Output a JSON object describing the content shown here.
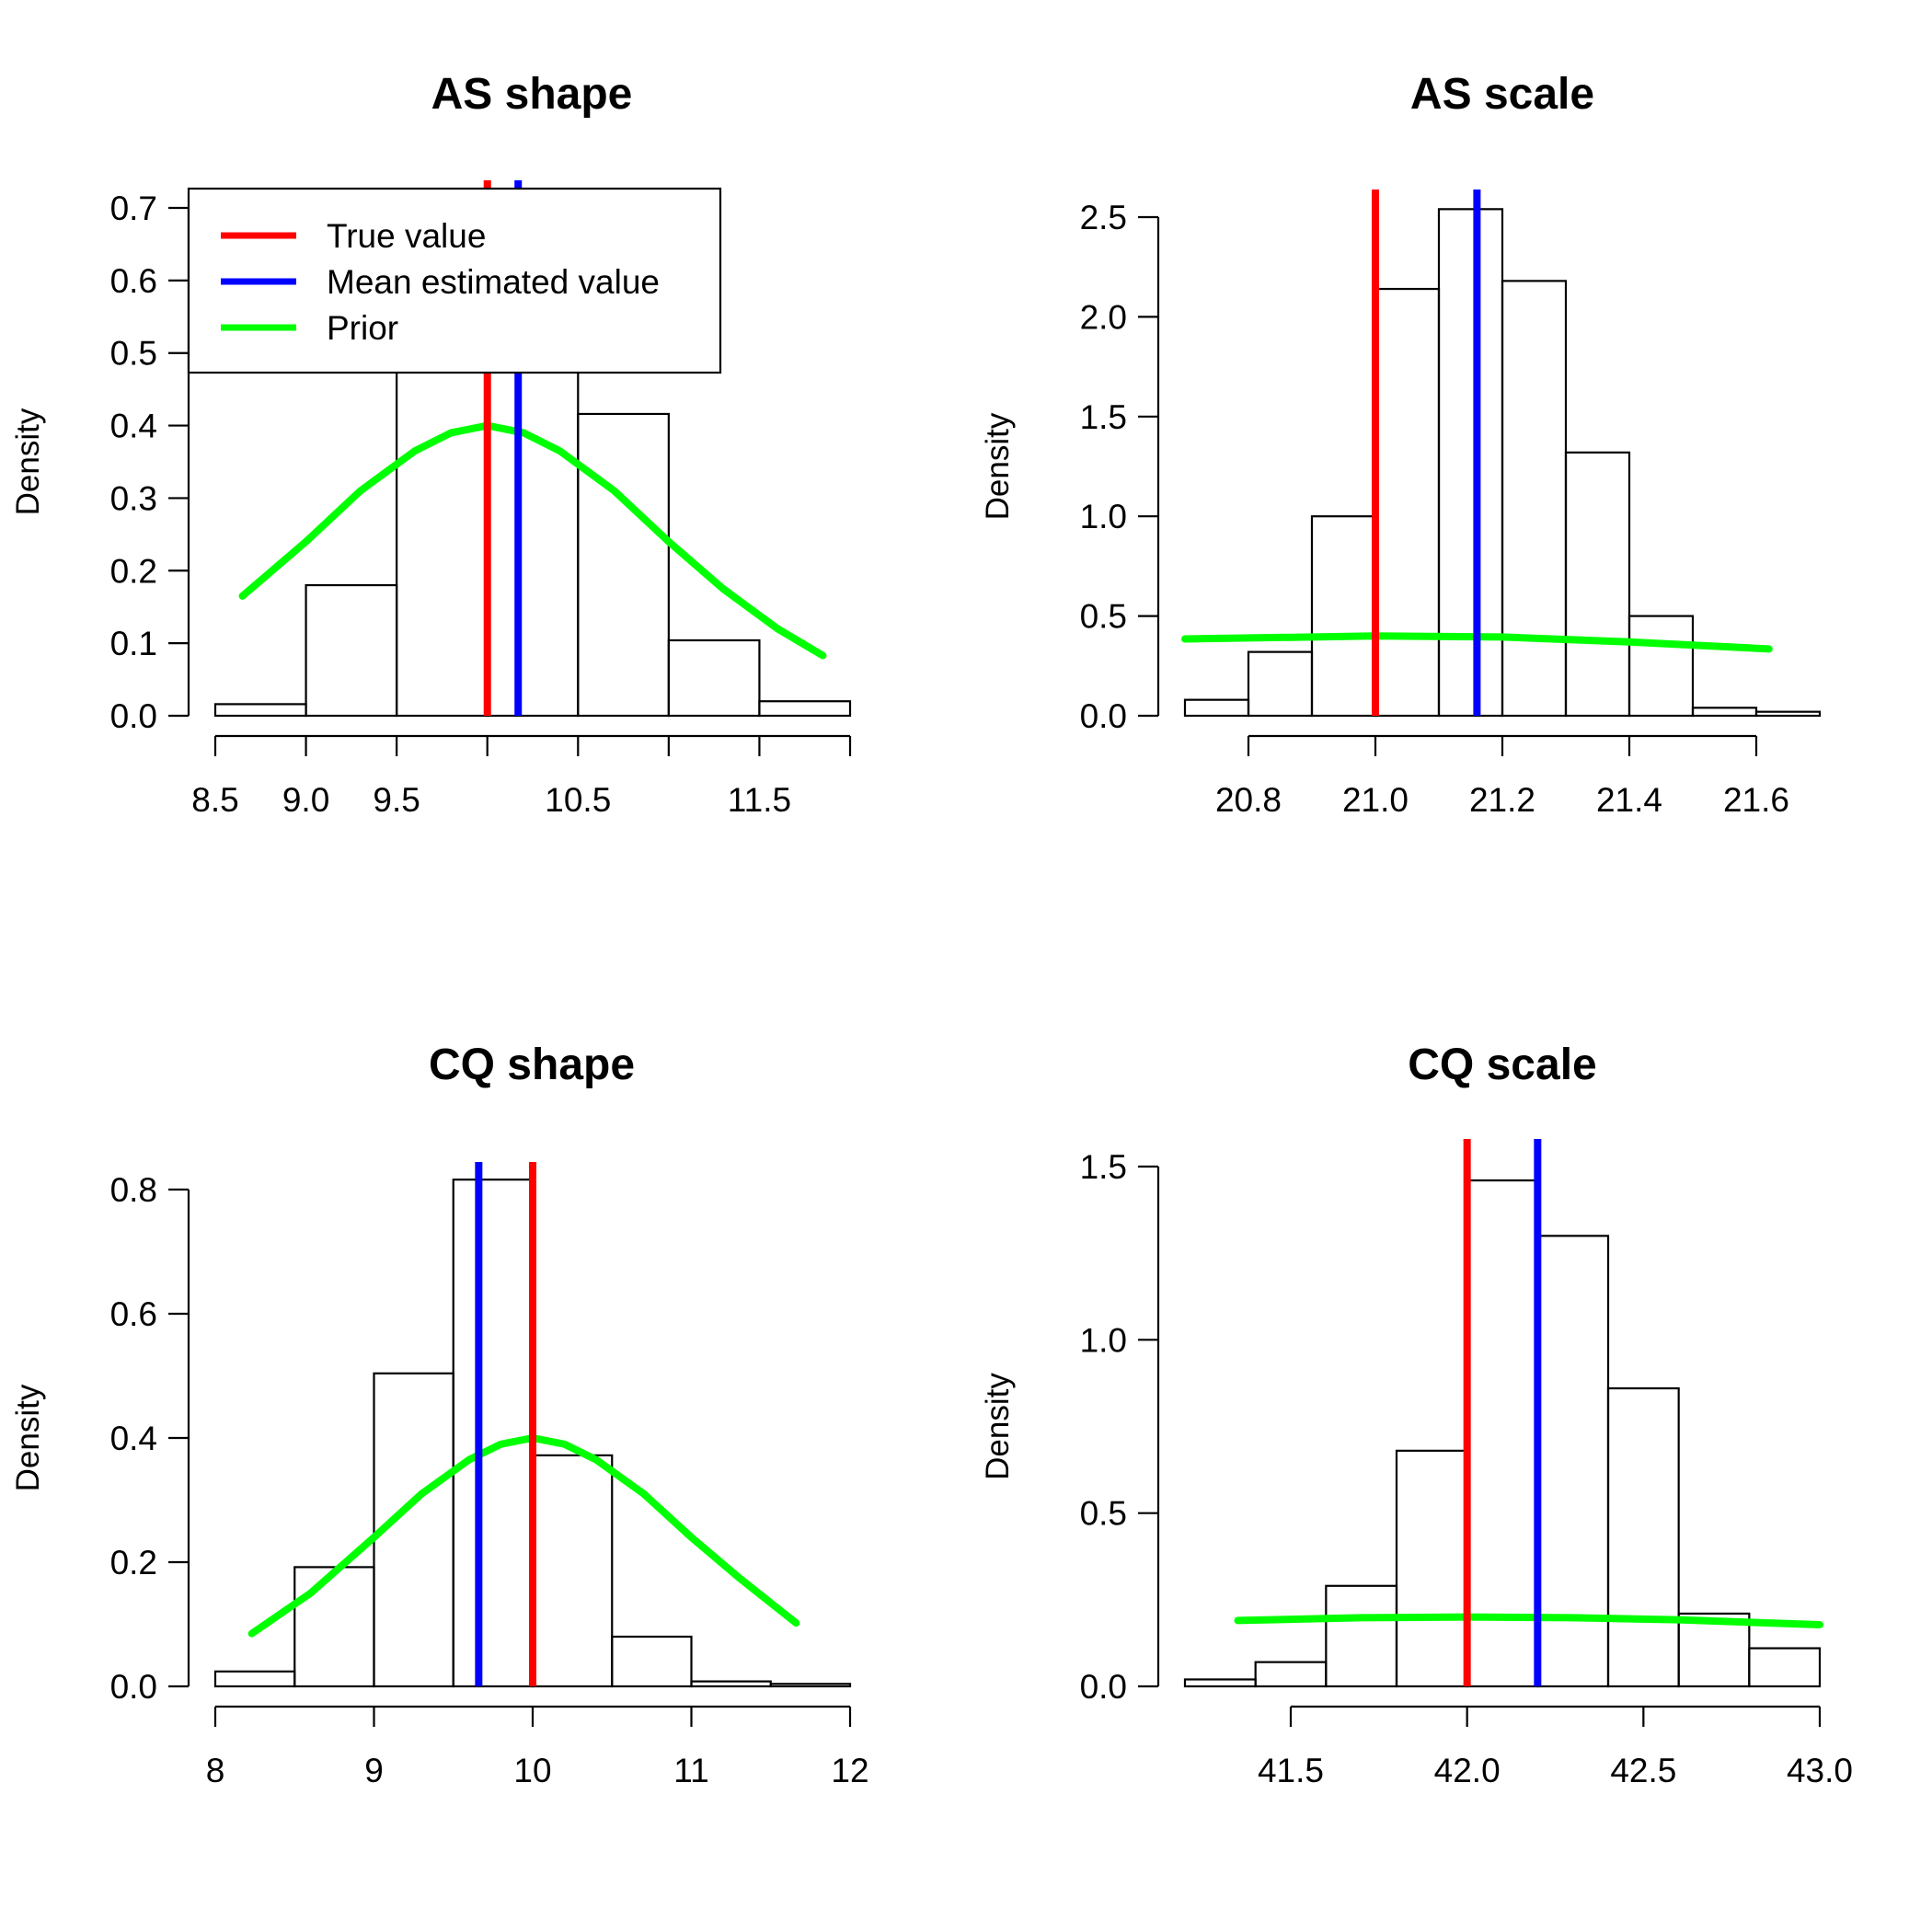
{
  "legend": {
    "items": [
      {
        "label": "True value",
        "color": "#ff0000"
      },
      {
        "label": "Mean estimated value",
        "color": "#0000ff"
      },
      {
        "label": "Prior",
        "color": "#00ff00"
      }
    ]
  },
  "chart_data": [
    {
      "type": "bar",
      "title": "AS shape",
      "xlabel": "",
      "ylabel": "Density",
      "xlim": [
        8.5,
        12.0
      ],
      "ylim": [
        0,
        0.7
      ],
      "bins": [
        [
          8.5,
          9.0
        ],
        [
          9.0,
          9.5
        ],
        [
          9.5,
          10.0
        ],
        [
          10.0,
          10.5
        ],
        [
          10.5,
          11.0
        ],
        [
          11.0,
          11.5
        ],
        [
          11.5,
          12.0
        ]
      ],
      "values": [
        0.016,
        0.18,
        0.6,
        0.6,
        0.416,
        0.104,
        0.02
      ],
      "true_value": 10.0,
      "mean_estimated_value": 10.17,
      "prior": {
        "x": [
          8.65,
          9.0,
          9.3,
          9.6,
          9.8,
          10.0,
          10.2,
          10.4,
          10.7,
          11.0,
          11.3,
          11.6,
          11.85
        ],
        "y": [
          0.165,
          0.24,
          0.31,
          0.365,
          0.39,
          0.4,
          0.39,
          0.365,
          0.31,
          0.24,
          0.175,
          0.12,
          0.083
        ]
      },
      "xticks": [
        8.5,
        9.0,
        9.5,
        10.5,
        11.5
      ],
      "xtick_labels": [
        "8.5",
        "9.0",
        "9.5",
        "10.5",
        "11.5"
      ],
      "yticks": [
        0.0,
        0.1,
        0.2,
        0.3,
        0.4,
        0.5,
        0.6,
        0.7
      ],
      "ytick_labels": [
        "0.0",
        "0.1",
        "0.2",
        "0.3",
        "0.4",
        "0.5",
        "0.6",
        "0.7"
      ],
      "legend": "top-left"
    },
    {
      "type": "bar",
      "title": "AS scale",
      "xlabel": "",
      "ylabel": "Density",
      "xlim": [
        20.7,
        21.7
      ],
      "ylim": [
        0,
        2.5
      ],
      "bins": [
        [
          20.7,
          20.8
        ],
        [
          20.8,
          20.9
        ],
        [
          20.9,
          21.0
        ],
        [
          21.0,
          21.1
        ],
        [
          21.1,
          21.2
        ],
        [
          21.2,
          21.3
        ],
        [
          21.3,
          21.4
        ],
        [
          21.4,
          21.5
        ],
        [
          21.5,
          21.6
        ],
        [
          21.6,
          21.7
        ]
      ],
      "values": [
        0.08,
        0.32,
        1.0,
        2.14,
        2.54,
        2.18,
        1.32,
        0.5,
        0.04,
        0.02
      ],
      "true_value": 21.0,
      "mean_estimated_value": 21.16,
      "prior": {
        "x": [
          20.7,
          21.0,
          21.2,
          21.4,
          21.62
        ],
        "y": [
          0.385,
          0.4,
          0.395,
          0.37,
          0.335
        ]
      },
      "xticks": [
        20.8,
        21.0,
        21.2,
        21.4,
        21.6
      ],
      "xtick_labels": [
        "20.8",
        "21.0",
        "21.2",
        "21.4",
        "21.6"
      ],
      "yticks": [
        0.0,
        0.5,
        1.0,
        1.5,
        2.0,
        2.5
      ],
      "ytick_labels": [
        "0.0",
        "0.5",
        "1.0",
        "1.5",
        "2.0",
        "2.5"
      ]
    },
    {
      "type": "bar",
      "title": "CQ shape",
      "xlabel": "",
      "ylabel": "Density",
      "xlim": [
        8,
        12
      ],
      "ylim": [
        0,
        0.8
      ],
      "bins": [
        [
          8.0,
          8.5
        ],
        [
          8.5,
          9.0
        ],
        [
          9.0,
          9.5
        ],
        [
          9.5,
          10.0
        ],
        [
          10.0,
          10.5
        ],
        [
          10.5,
          11.0
        ],
        [
          11.0,
          11.5
        ],
        [
          11.5,
          12.0
        ]
      ],
      "values": [
        0.024,
        0.192,
        0.504,
        0.816,
        0.372,
        0.08,
        0.008,
        0.004
      ],
      "true_value": 10.0,
      "mean_estimated_value": 9.66,
      "prior": {
        "x": [
          8.23,
          8.6,
          9.0,
          9.3,
          9.6,
          9.8,
          10.0,
          10.2,
          10.4,
          10.7,
          11.0,
          11.3,
          11.66
        ],
        "y": [
          0.085,
          0.15,
          0.24,
          0.31,
          0.365,
          0.39,
          0.4,
          0.39,
          0.365,
          0.31,
          0.24,
          0.175,
          0.102
        ]
      },
      "xticks": [
        8,
        9,
        10,
        11,
        12
      ],
      "xtick_labels": [
        "8",
        "9",
        "10",
        "11",
        "12"
      ],
      "yticks": [
        0.0,
        0.2,
        0.4,
        0.6,
        0.8
      ],
      "ytick_labels": [
        "0.0",
        "0.2",
        "0.4",
        "0.6",
        "0.8"
      ]
    },
    {
      "type": "bar",
      "title": "CQ scale",
      "xlabel": "",
      "ylabel": "Density",
      "xlim": [
        41.2,
        43.0
      ],
      "ylim": [
        0,
        1.5
      ],
      "bins": [
        [
          41.2,
          41.4
        ],
        [
          41.4,
          41.6
        ],
        [
          41.6,
          41.8
        ],
        [
          41.8,
          42.0
        ],
        [
          42.0,
          42.2
        ],
        [
          42.2,
          42.4
        ],
        [
          42.4,
          42.6
        ],
        [
          42.6,
          42.8
        ],
        [
          42.8,
          43.0
        ]
      ],
      "values": [
        0.02,
        0.07,
        0.29,
        0.68,
        1.46,
        1.3,
        0.86,
        0.21,
        0.11
      ],
      "true_value": 42.0,
      "mean_estimated_value": 42.2,
      "prior": {
        "x": [
          41.35,
          41.7,
          42.0,
          42.3,
          42.6,
          43.0
        ],
        "y": [
          0.19,
          0.198,
          0.2,
          0.198,
          0.192,
          0.178
        ]
      },
      "xticks": [
        41.5,
        42.0,
        42.5,
        43.0
      ],
      "xtick_labels": [
        "41.5",
        "42.0",
        "42.5",
        "43.0"
      ],
      "yticks": [
        0.0,
        0.5,
        1.0,
        1.5
      ],
      "ytick_labels": [
        "0.0",
        "0.5",
        "1.0",
        "1.5"
      ]
    }
  ]
}
